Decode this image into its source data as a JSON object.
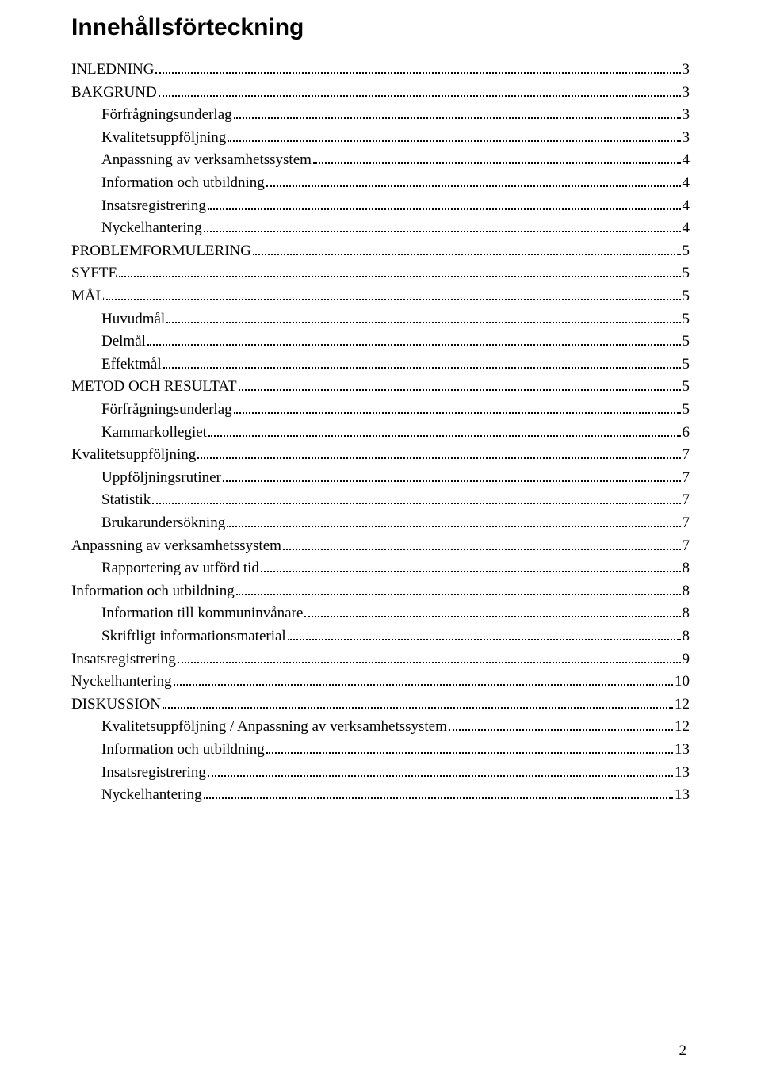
{
  "title": "Innehållsförteckning",
  "page_number": "2",
  "toc": [
    {
      "label": "INLEDNING",
      "page": "3",
      "indent": 0
    },
    {
      "label": "BAKGRUND",
      "page": "3",
      "indent": 0
    },
    {
      "label": "Förfrågningsunderlag",
      "page": "3",
      "indent": 1
    },
    {
      "label": "Kvalitetsuppföljning",
      "page": "3",
      "indent": 1
    },
    {
      "label": "Anpassning av verksamhetssystem",
      "page": "4",
      "indent": 1
    },
    {
      "label": "Information och utbildning",
      "page": "4",
      "indent": 1
    },
    {
      "label": "Insatsregistrering",
      "page": "4",
      "indent": 1
    },
    {
      "label": "Nyckelhantering",
      "page": "4",
      "indent": 1
    },
    {
      "label": "PROBLEMFORMULERING",
      "page": "5",
      "indent": 0
    },
    {
      "label": "SYFTE",
      "page": "5",
      "indent": 0
    },
    {
      "label": "MÅL",
      "page": "5",
      "indent": 0
    },
    {
      "label": "Huvudmål",
      "page": "5",
      "indent": 1
    },
    {
      "label": "Delmål",
      "page": "5",
      "indent": 1
    },
    {
      "label": "Effektmål",
      "page": "5",
      "indent": 1
    },
    {
      "label": "METOD OCH RESULTAT",
      "page": "5",
      "indent": 0
    },
    {
      "label": "Förfrågningsunderlag",
      "page": "5",
      "indent": 1
    },
    {
      "label": "Kammarkollegiet",
      "page": "6",
      "indent": 1
    },
    {
      "label": "Kvalitetsuppföljning",
      "page": "7",
      "indent": 0
    },
    {
      "label": "Uppföljningsrutiner",
      "page": "7",
      "indent": 1
    },
    {
      "label": "Statistik",
      "page": "7",
      "indent": 1
    },
    {
      "label": "Brukarundersökning",
      "page": "7",
      "indent": 1
    },
    {
      "label": "Anpassning av verksamhetssystem",
      "page": "7",
      "indent": 0
    },
    {
      "label": "Rapportering av utförd tid",
      "page": "8",
      "indent": 1
    },
    {
      "label": "Information och utbildning",
      "page": "8",
      "indent": 0
    },
    {
      "label": "Information till kommuninvånare",
      "page": "8",
      "indent": 1
    },
    {
      "label": "Skriftligt informationsmaterial",
      "page": "8",
      "indent": 1
    },
    {
      "label": "Insatsregistrering",
      "page": "9",
      "indent": 0
    },
    {
      "label": "Nyckelhantering",
      "page": "10",
      "indent": 0
    },
    {
      "label": "DISKUSSION",
      "page": "12",
      "indent": 0
    },
    {
      "label": "Kvalitetsuppföljning / Anpassning av verksamhetssystem",
      "page": "12",
      "indent": 1
    },
    {
      "label": "Information och utbildning",
      "page": "13",
      "indent": 1
    },
    {
      "label": "Insatsregistrering",
      "page": "13",
      "indent": 1
    },
    {
      "label": "Nyckelhantering",
      "page": "13",
      "indent": 1
    }
  ]
}
